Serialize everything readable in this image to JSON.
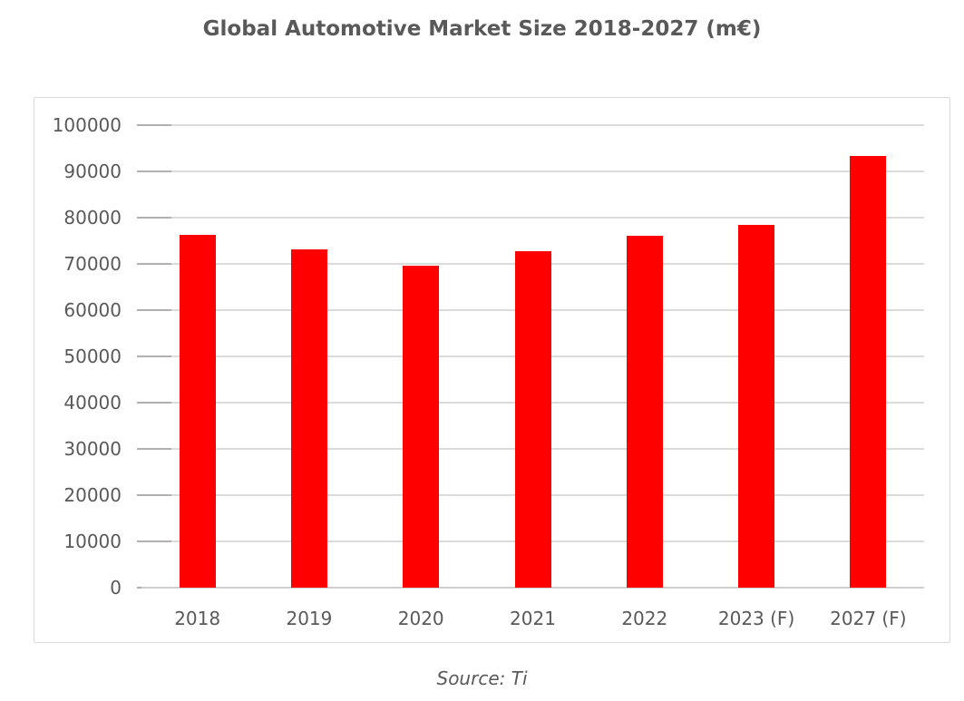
{
  "title": "Global Automotive Market Size 2018-2027 (m€)",
  "source_note": "Source: Ti",
  "colors": {
    "bar": "#ff0000",
    "text": "#595959",
    "gridline": "#dbdbdb",
    "tick": "#b0b0b0",
    "axis_line": "#cfcfcf",
    "frame_border": "#d9d9d9"
  },
  "chart_data": {
    "type": "bar",
    "title": "Global Automotive Market Size 2018-2027 (m€)",
    "categories": [
      "2018",
      "2019",
      "2020",
      "2021",
      "2022",
      "2023 (F)",
      "2027 (F)"
    ],
    "values": [
      76300,
      73200,
      69700,
      72800,
      76100,
      78500,
      93400
    ],
    "series_name": "Global Automotive Market Size",
    "xlabel": "",
    "ylabel": "",
    "ylim": [
      0,
      100000
    ],
    "ytick_step": 10000,
    "ytick_labels": [
      "0",
      "10000",
      "20000",
      "30000",
      "40000",
      "50000",
      "60000",
      "70000",
      "80000",
      "90000",
      "100000"
    ],
    "grid": true,
    "legend": false,
    "bar_color": "#ff0000",
    "source_note": "Source: Ti"
  }
}
